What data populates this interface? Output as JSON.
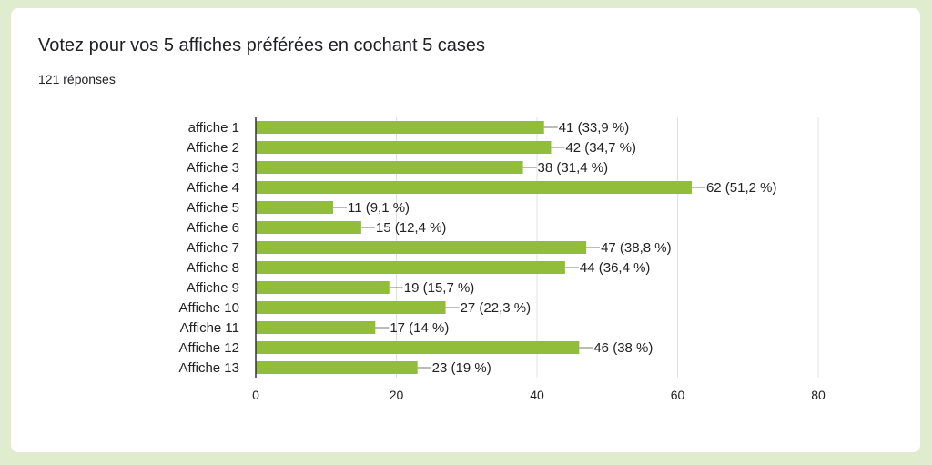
{
  "form": {
    "question": "Votez pour vos 5 affiches préférées en cochant 5 cases",
    "responses_label": "121 réponses"
  },
  "colors": {
    "bar": "#91bd3a",
    "grid": "#e0e0e0",
    "axis": "#333333",
    "background": "#dfeccd",
    "card": "#ffffff"
  },
  "chart_data": {
    "type": "bar",
    "orientation": "horizontal",
    "categories": [
      "affiche 1",
      "Affiche 2",
      "Affiche 3",
      "Affiche 4",
      "Affiche 5",
      "Affiche 6",
      "Affiche 7",
      "Affiche 8",
      "Affiche 9",
      "Affiche 10",
      "Affiche 11",
      "Affiche 12",
      "Affiche 13"
    ],
    "values": [
      41,
      42,
      38,
      62,
      11,
      15,
      47,
      44,
      19,
      27,
      17,
      46,
      23
    ],
    "data_labels": [
      "41 (33,9 %)",
      "42 (34,7 %)",
      "38 (31,4 %)",
      "62 (51,2 %)",
      "11 (9,1 %)",
      "15 (12,4 %)",
      "47 (38,8 %)",
      "44 (36,4 %)",
      "19 (15,7 %)",
      "27 (22,3 %)",
      "17 (14 %)",
      "46 (38 %)",
      "23 (19 %)"
    ],
    "xlim": [
      0,
      80
    ],
    "xticks": [
      0,
      20,
      40,
      60,
      80
    ],
    "grid": true,
    "legend": "none"
  }
}
